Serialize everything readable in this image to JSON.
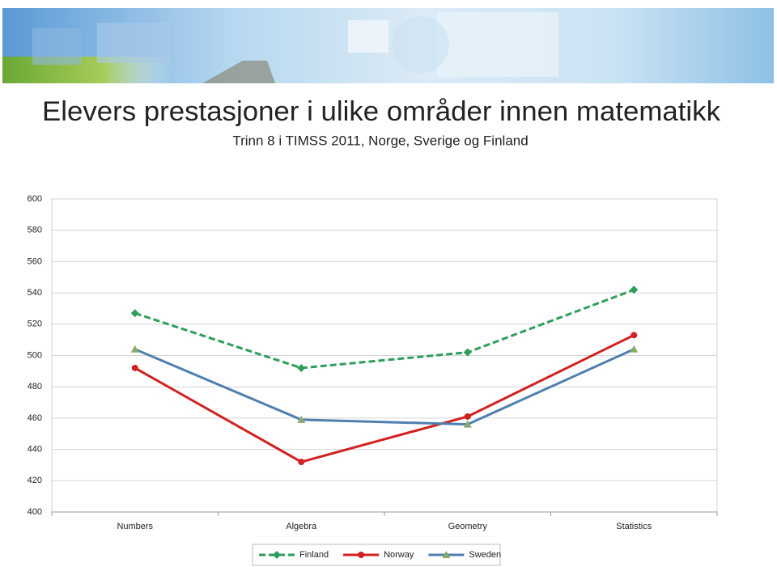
{
  "chart_data": {
    "type": "line",
    "title": "Elevers prestasjoner i ulike områder innen matematikk",
    "subtitle": "Trinn 8 i TIMSS 2011, Norge, Sverige og Finland",
    "categories": [
      "Numbers",
      "Algebra",
      "Geometry",
      "Statistics"
    ],
    "series": [
      {
        "name": "Finland",
        "color": "#2e9e5b",
        "marker_color": "#2e9e5b",
        "marker": "diamond",
        "dashed": true,
        "values": [
          527,
          492,
          502,
          542
        ]
      },
      {
        "name": "Norway",
        "color": "#d42020",
        "marker_color": "#d42020",
        "marker": "circle",
        "dashed": false,
        "values": [
          492,
          432,
          461,
          513
        ]
      },
      {
        "name": "Sweden",
        "color": "#4f7faf",
        "marker_color": "#8aaa6a",
        "marker": "triangle",
        "dashed": false,
        "values": [
          504,
          459,
          456,
          504
        ]
      }
    ],
    "ylim": [
      400,
      600
    ],
    "yticks": [
      400,
      420,
      440,
      460,
      480,
      500,
      520,
      540,
      560,
      580,
      600
    ],
    "grid": true,
    "legend": "bottom"
  }
}
